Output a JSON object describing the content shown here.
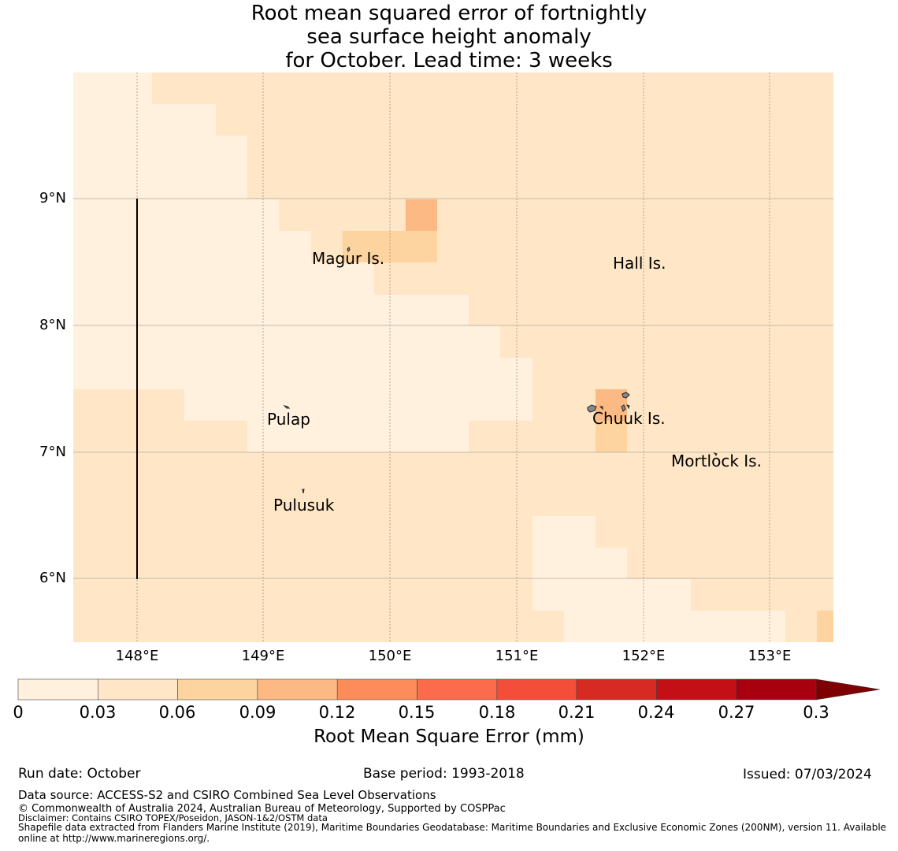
{
  "title": {
    "line1": "Root mean squared error of fortnightly",
    "line2": "sea surface height anomaly",
    "line3": "for October. Lead time: 3 weeks"
  },
  "map": {
    "lat_labels": [
      "9°N",
      "8°N",
      "7°N",
      "6°N"
    ],
    "lon_labels": [
      "148°E",
      "149°E",
      "150°E",
      "151°E",
      "152°E",
      "153°E"
    ],
    "places": [
      "Magur Is.",
      "Hall Is.",
      "Pulap",
      "Chuuk Is.",
      "Mortlock Is.",
      "Pulusuk"
    ]
  },
  "colorbar": {
    "ticks": [
      "0",
      "0.03",
      "0.06",
      "0.09",
      "0.12",
      "0.15",
      "0.18",
      "0.21",
      "0.24",
      "0.27",
      "0.3"
    ],
    "colors": [
      "#fff1de",
      "#fee6c7",
      "#fdd39f",
      "#fdb983",
      "#fc8c59",
      "#fc6b4b",
      "#f44d3a",
      "#d72a22",
      "#c50f17",
      "#a9000f"
    ],
    "extend_color": "#7f0000",
    "label": "Root Mean Square Error (mm)"
  },
  "footer": {
    "run_date": "Run date: October",
    "base_period": "Base period: 1993-2018",
    "issued": "Issued: 07/03/2024",
    "data_source": "Data source: ACCESS-S2 and CSIRO Combined Sea Level Observations",
    "copyright": "© Commonwealth of Australia 2024, Australian Bureau of Meteorology, Supported by COSPPac",
    "disclaimer": "Disclaimer: Contains CSIRO TOPEX/Poseidon, JASON-1&2/OSTM data",
    "shapefile_1": "Shapefile data extracted from Flanders Marine Institute (2019), Maritime Boundaries Geodatabase: Maritime Boundaries and Exclusive Economic Zones (200NM), version 11. Available",
    "shapefile_2": "online at http://www.marineregions.org/."
  }
}
